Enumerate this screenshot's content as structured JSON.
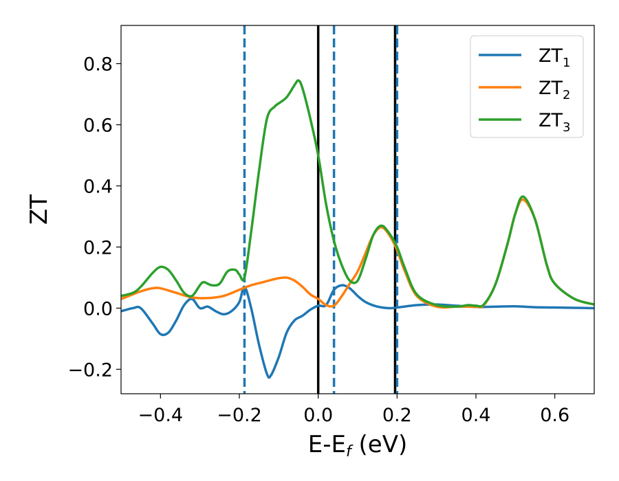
{
  "chart_data": {
    "type": "line",
    "xlabel": "E-E",
    "xlabel_sub": "f",
    "xlabel_unit": " (eV)",
    "ylabel": "ZT",
    "xlim": [
      -0.5,
      0.7
    ],
    "ylim": [
      -0.28,
      0.925
    ],
    "xticks": [
      -0.4,
      -0.2,
      0.0,
      0.2,
      0.4,
      0.6
    ],
    "xtick_labels": [
      "−0.4",
      "−0.2",
      "0.0",
      "0.2",
      "0.4",
      "0.6"
    ],
    "yticks": [
      -0.2,
      0.0,
      0.2,
      0.4,
      0.6,
      0.8
    ],
    "ytick_labels": [
      "−0.2",
      "0.0",
      "0.2",
      "0.4",
      "0.6",
      "0.8"
    ],
    "grid": false,
    "legend_position": "top-right",
    "vlines": [
      {
        "x": -0.187,
        "style": "dashed",
        "color": "#1f77b4"
      },
      {
        "x": 0.0,
        "style": "solid",
        "color": "#000000"
      },
      {
        "x": 0.04,
        "style": "dashed",
        "color": "#1f77b4"
      },
      {
        "x": 0.195,
        "style": "solid",
        "color": "#000000"
      },
      {
        "x": 0.2,
        "style": "dashed",
        "color": "#1f77b4"
      }
    ],
    "series": [
      {
        "name": "ZT",
        "name_sub": "1",
        "color": "#1f77b4",
        "x": [
          -0.5,
          -0.47,
          -0.45,
          -0.42,
          -0.4,
          -0.38,
          -0.36,
          -0.34,
          -0.32,
          -0.3,
          -0.28,
          -0.26,
          -0.24,
          -0.22,
          -0.2,
          -0.187,
          -0.17,
          -0.15,
          -0.13,
          -0.12,
          -0.1,
          -0.08,
          -0.06,
          -0.04,
          -0.02,
          0.0,
          0.02,
          0.04,
          0.06,
          0.08,
          0.1,
          0.12,
          0.15,
          0.18,
          0.2,
          0.25,
          0.3,
          0.35,
          0.4,
          0.45,
          0.5,
          0.55,
          0.6,
          0.65,
          0.7
        ],
        "y": [
          -0.01,
          0.0,
          0.0,
          -0.05,
          -0.085,
          -0.08,
          -0.04,
          0.01,
          0.03,
          0.0,
          0.005,
          -0.01,
          -0.02,
          -0.01,
          0.02,
          0.07,
          0.0,
          -0.12,
          -0.215,
          -0.22,
          -0.16,
          -0.08,
          -0.04,
          -0.025,
          -0.005,
          0.008,
          0.01,
          0.06,
          0.075,
          0.065,
          0.04,
          0.02,
          0.005,
          0.0,
          0.002,
          0.01,
          0.012,
          0.008,
          0.004,
          0.005,
          0.006,
          0.003,
          0.002,
          0.001,
          0.0
        ]
      },
      {
        "name": "ZT",
        "name_sub": "2",
        "color": "#ff7f0e",
        "x": [
          -0.5,
          -0.48,
          -0.45,
          -0.42,
          -0.4,
          -0.36,
          -0.32,
          -0.28,
          -0.24,
          -0.2,
          -0.17,
          -0.14,
          -0.12,
          -0.1,
          -0.08,
          -0.06,
          -0.04,
          -0.02,
          0.0,
          0.02,
          0.04,
          0.06,
          0.08,
          0.1,
          0.12,
          0.14,
          0.16,
          0.18,
          0.2,
          0.22,
          0.25,
          0.3,
          0.35,
          0.38,
          0.4,
          0.42,
          0.45,
          0.48,
          0.5,
          0.52,
          0.55,
          0.58,
          0.6,
          0.65,
          0.7
        ],
        "y": [
          0.03,
          0.04,
          0.055,
          0.065,
          0.065,
          0.05,
          0.035,
          0.033,
          0.04,
          0.06,
          0.075,
          0.085,
          0.092,
          0.098,
          0.1,
          0.09,
          0.07,
          0.045,
          0.03,
          0.01,
          0.008,
          0.04,
          0.08,
          0.12,
          0.18,
          0.24,
          0.265,
          0.24,
          0.19,
          0.12,
          0.04,
          0.005,
          0.005,
          0.005,
          0.005,
          0.01,
          0.08,
          0.21,
          0.31,
          0.355,
          0.29,
          0.14,
          0.08,
          0.03,
          0.012
        ]
      },
      {
        "name": "ZT",
        "name_sub": "3",
        "color": "#2ca02c",
        "x": [
          -0.5,
          -0.47,
          -0.45,
          -0.42,
          -0.4,
          -0.38,
          -0.36,
          -0.34,
          -0.32,
          -0.3,
          -0.29,
          -0.27,
          -0.25,
          -0.23,
          -0.21,
          -0.2,
          -0.187,
          -0.17,
          -0.15,
          -0.13,
          -0.11,
          -0.1,
          -0.08,
          -0.06,
          -0.05,
          -0.04,
          -0.02,
          0.0,
          0.02,
          0.04,
          0.06,
          0.08,
          0.1,
          0.12,
          0.14,
          0.16,
          0.18,
          0.2,
          0.22,
          0.25,
          0.3,
          0.35,
          0.38,
          0.4,
          0.42,
          0.45,
          0.48,
          0.5,
          0.52,
          0.55,
          0.58,
          0.6,
          0.65,
          0.7
        ],
        "y": [
          0.04,
          0.05,
          0.07,
          0.115,
          0.135,
          0.125,
          0.09,
          0.05,
          0.04,
          0.075,
          0.085,
          0.075,
          0.08,
          0.12,
          0.125,
          0.11,
          0.1,
          0.25,
          0.45,
          0.62,
          0.66,
          0.67,
          0.69,
          0.73,
          0.745,
          0.72,
          0.62,
          0.5,
          0.34,
          0.22,
          0.14,
          0.09,
          0.09,
          0.16,
          0.24,
          0.27,
          0.245,
          0.2,
          0.13,
          0.045,
          0.01,
          0.005,
          0.01,
          0.008,
          0.012,
          0.08,
          0.21,
          0.31,
          0.365,
          0.29,
          0.14,
          0.08,
          0.03,
          0.012
        ]
      }
    ]
  }
}
